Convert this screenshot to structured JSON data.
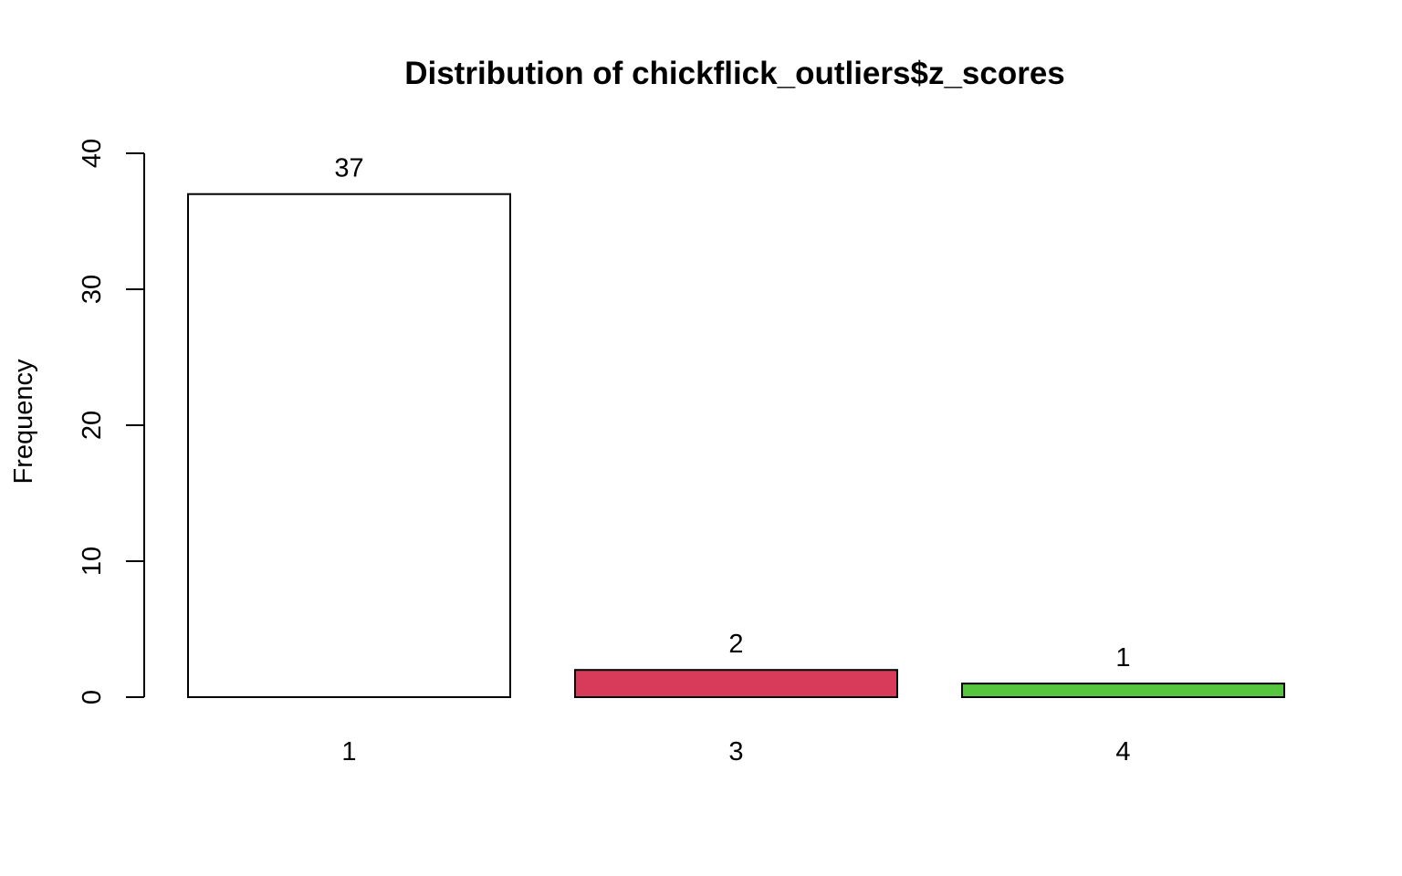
{
  "chart_data": {
    "type": "bar",
    "title": "Distribution of chickflick_outliers$z_scores",
    "xlabel": "",
    "ylabel": "Frequency",
    "categories": [
      "1",
      "3",
      "4"
    ],
    "values": [
      37,
      2,
      1
    ],
    "value_labels": [
      "37",
      "2",
      "1"
    ],
    "bar_colors": [
      "#ffffff",
      "#d83a5a",
      "#55c63e"
    ],
    "ylim": [
      0,
      40
    ],
    "yticks": [
      0,
      10,
      20,
      30,
      40
    ],
    "grid": false,
    "legend": "none"
  }
}
